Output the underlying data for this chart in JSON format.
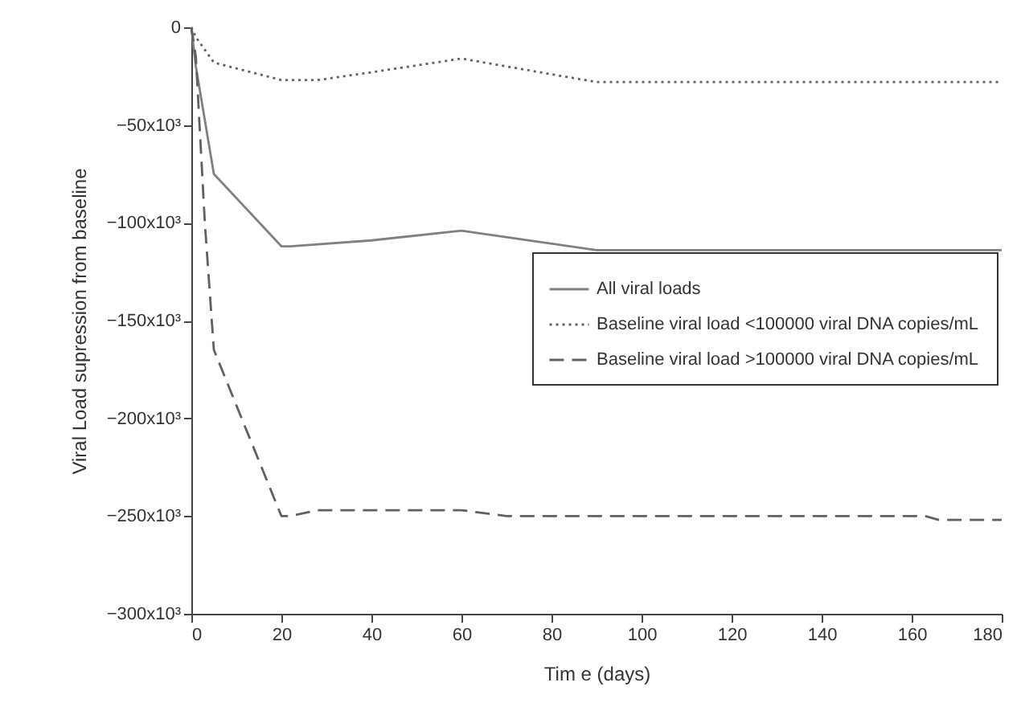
{
  "chart_data": {
    "type": "line",
    "xlabel": "Tim e (days)",
    "ylabel": "Viral Load supression from baseline",
    "xlim": [
      0,
      180
    ],
    "xticks": [
      0,
      20,
      40,
      60,
      80,
      100,
      120,
      140,
      160,
      180
    ],
    "ylim": [
      -300000,
      0
    ],
    "yticks": [
      {
        "value": -300000,
        "label": "−300x10³"
      },
      {
        "value": -250000,
        "label": "−250x10³"
      },
      {
        "value": -200000,
        "label": "−200x10³"
      },
      {
        "value": -150000,
        "label": "−150x10³"
      },
      {
        "value": -100000,
        "label": "−100x10³"
      },
      {
        "value": -50000,
        "label": "−50x10³"
      },
      {
        "value": 0,
        "label": "0"
      }
    ],
    "grid": false,
    "legend": "right",
    "marker": "none",
    "series": [
      {
        "name": "All viral loads",
        "color": "#808080",
        "line_style": "solid",
        "x": [
          0,
          1,
          5,
          20,
          22,
          40,
          60,
          90,
          180
        ],
        "values": [
          0,
          -20000,
          -75000,
          -112000,
          -112000,
          -109000,
          -104000,
          -114000,
          -114000
        ]
      },
      {
        "name": "Baseline viral load <100000 viral DNA copies/mL",
        "color": "#606060",
        "line_style": "dotted",
        "x": [
          0,
          1,
          5,
          20,
          28,
          40,
          60,
          90,
          180
        ],
        "values": [
          0,
          -5000,
          -18000,
          -27000,
          -27000,
          -23000,
          -16000,
          -28000,
          -28000
        ]
      },
      {
        "name": "Baseline viral load >100000 viral DNA copies/mL",
        "color": "#606060",
        "line_style": "dashed",
        "x": [
          0,
          1,
          3,
          5,
          20,
          22,
          28,
          60,
          70,
          163,
          166,
          180
        ],
        "values": [
          0,
          -15000,
          -100000,
          -165000,
          -250000,
          -250000,
          -247000,
          -247000,
          -250000,
          -250000,
          -252000,
          -252000
        ]
      }
    ]
  }
}
